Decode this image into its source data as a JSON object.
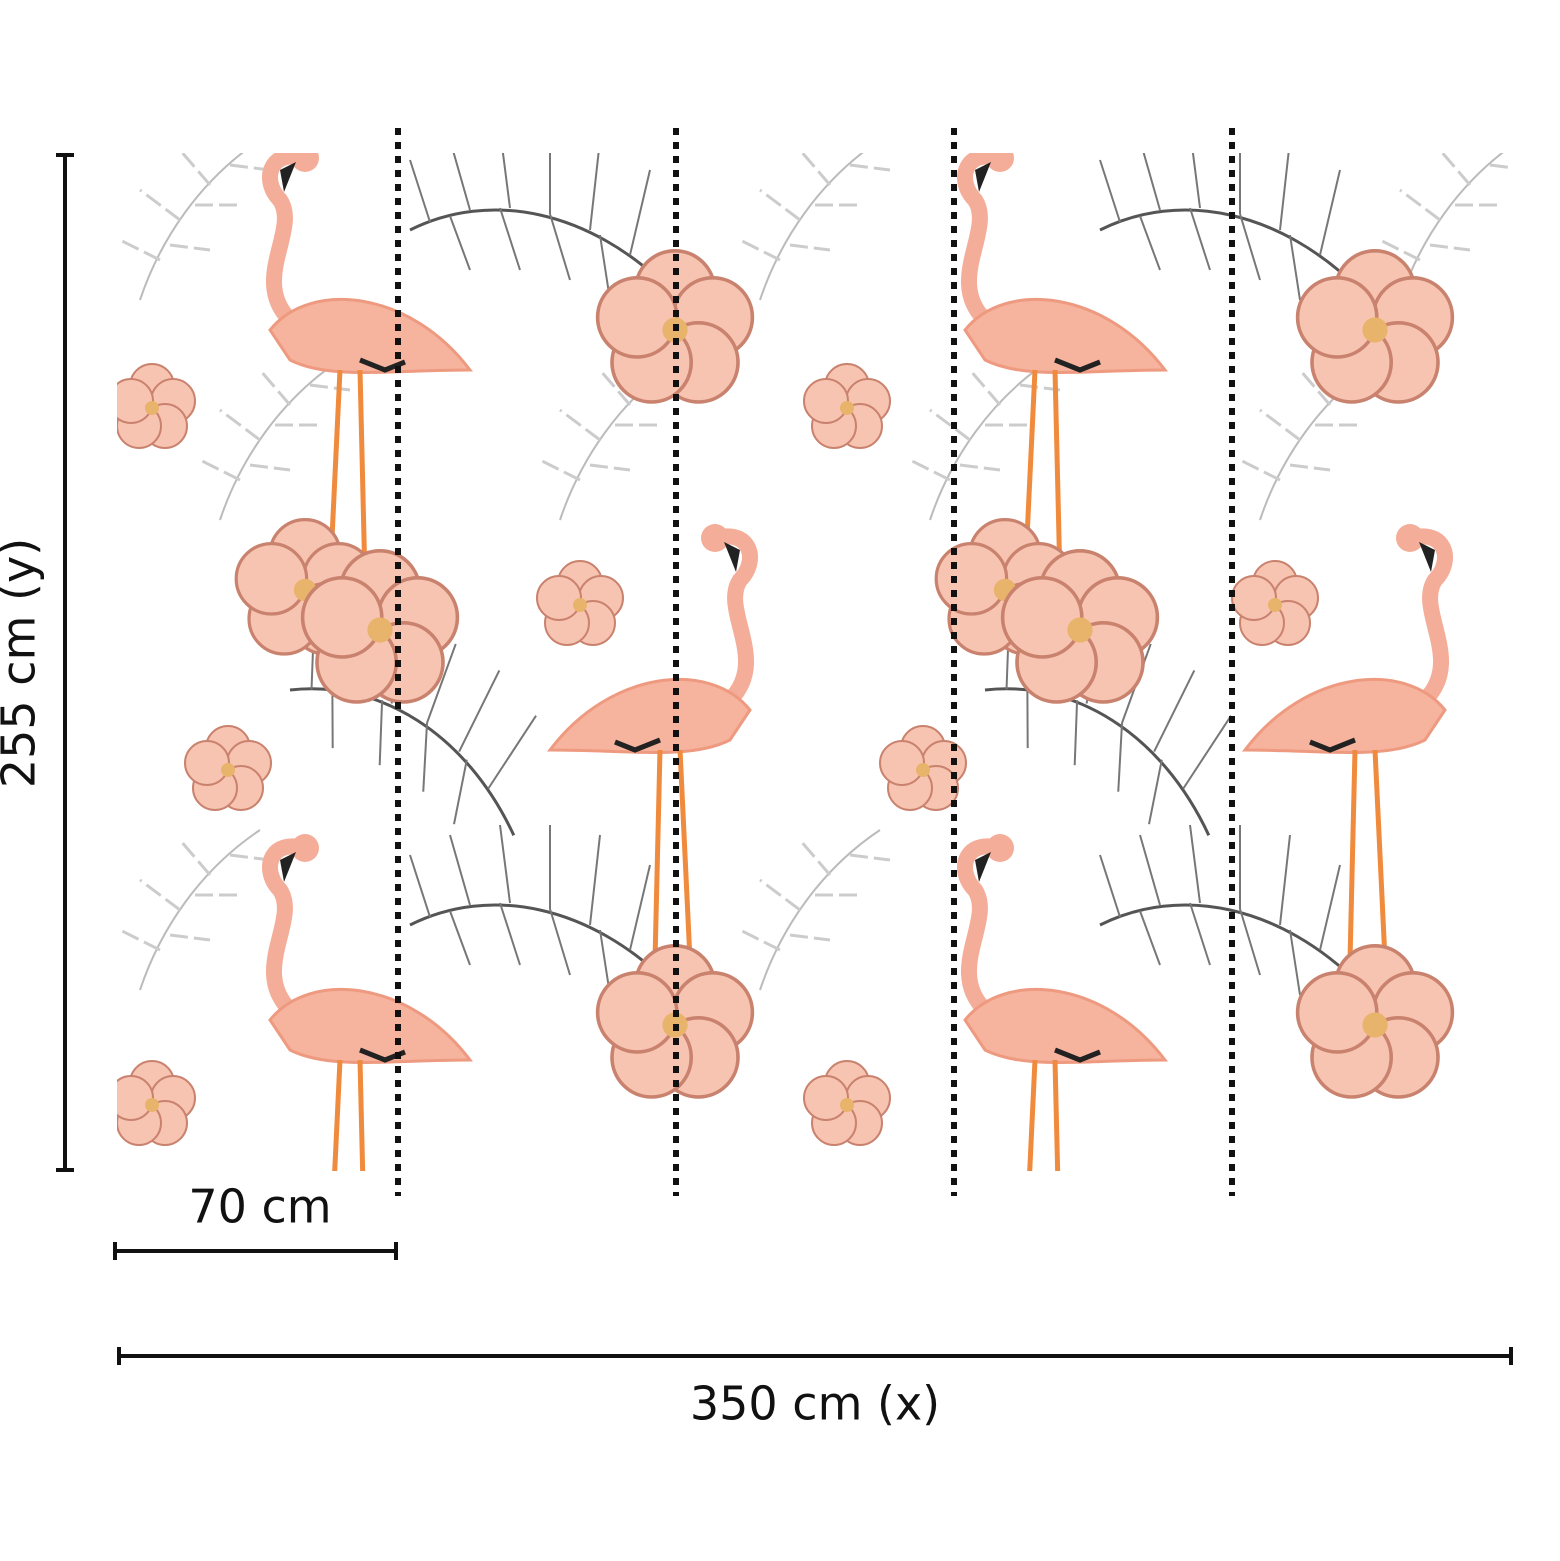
{
  "dimensions": {
    "height_label": "255 cm (y)",
    "panel_width_label": "70 cm",
    "width_label": "350 cm (x)"
  }
}
